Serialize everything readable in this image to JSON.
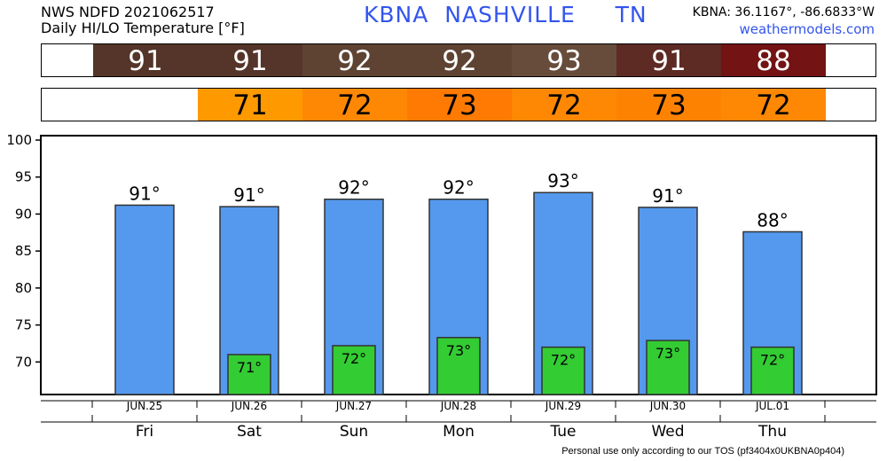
{
  "header": {
    "line1": "NWS NDFD 2021062517",
    "line2": "Daily HI/LO Temperature [°F]",
    "station_title": "KBNA  NASHVILLE     TN",
    "coords": "KBNA: 36.1167°, -86.6833°W",
    "site": "weathermodels.com"
  },
  "strips": {
    "hi": [
      {
        "label": "91",
        "color": "#553529"
      },
      {
        "label": "91",
        "color": "#553529"
      },
      {
        "label": "92",
        "color": "#5e4332"
      },
      {
        "label": "92",
        "color": "#5e4332"
      },
      {
        "label": "93",
        "color": "#674c3c"
      },
      {
        "label": "91",
        "color": "#5e2a24"
      },
      {
        "label": "88",
        "color": "#731313"
      }
    ],
    "lo": [
      {
        "label": "",
        "color": "#ffffff"
      },
      {
        "label": "71",
        "color": "#fe9900"
      },
      {
        "label": "72",
        "color": "#fe8804"
      },
      {
        "label": "73",
        "color": "#fe7a02"
      },
      {
        "label": "72",
        "color": "#fe8804"
      },
      {
        "label": "73",
        "color": "#fe8202"
      },
      {
        "label": "72",
        "color": "#fe8804"
      }
    ]
  },
  "footer": "Personal use only according to our TOS (pf3404x0UKBNA0p404)",
  "chart_data": {
    "type": "bar",
    "dates": [
      "JUN.25",
      "JUN.26",
      "JUN.27",
      "JUN.28",
      "JUN.29",
      "JUN.30",
      "JUL.01"
    ],
    "days": [
      "Fri",
      "Sat",
      "Sun",
      "Mon",
      "Tue",
      "Wed",
      "Thu"
    ],
    "series": [
      {
        "values": [
          91.2,
          91,
          92,
          92,
          92.9,
          90.9,
          87.6
        ],
        "labels": [
          "91°",
          "91°",
          "92°",
          "92°",
          "93°",
          "91°",
          "88°"
        ],
        "color": "#5599ee"
      },
      {
        "values": [
          null,
          71,
          72.2,
          73.3,
          72,
          72.9,
          72
        ],
        "labels": [
          "",
          "71°",
          "72°",
          "73°",
          "72°",
          "73°",
          "72°"
        ],
        "color": "#33cc33"
      }
    ],
    "y_ticks": [
      70,
      75,
      80,
      85,
      90,
      95,
      100
    ],
    "ylim": [
      65.6,
      100.6
    ],
    "grid": false
  }
}
